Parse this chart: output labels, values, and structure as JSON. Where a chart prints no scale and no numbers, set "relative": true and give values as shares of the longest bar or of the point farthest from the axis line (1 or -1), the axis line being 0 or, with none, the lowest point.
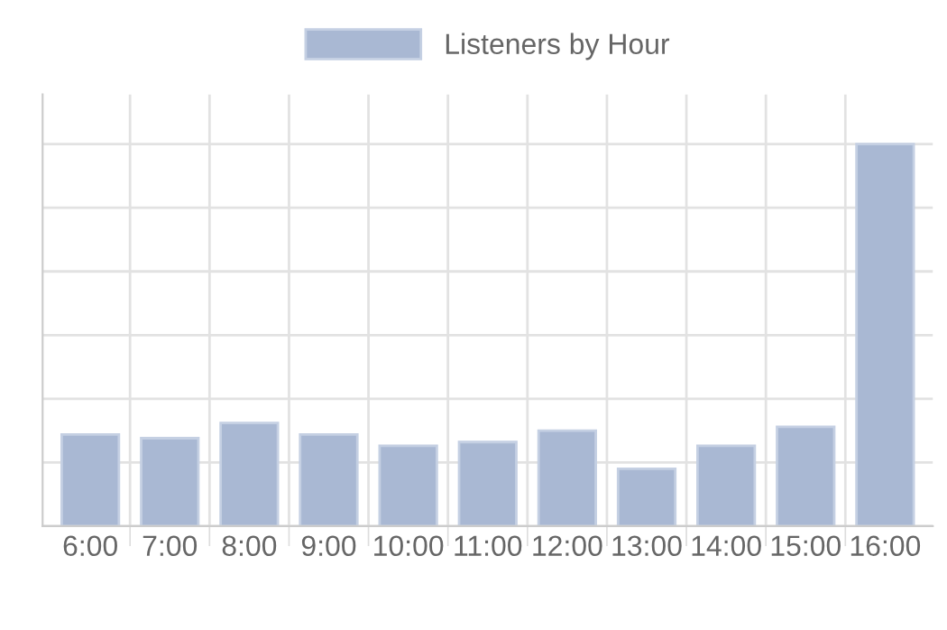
{
  "chart_data": {
    "type": "bar",
    "relative": true,
    "categories": [
      "6:00",
      "7:00",
      "8:00",
      "9:00",
      "10:00",
      "11:00",
      "12:00",
      "13:00",
      "14:00",
      "15:00",
      "16:00"
    ],
    "series": [
      {
        "name": "Listeners by Hour",
        "color": "#a9b8d3",
        "values": [
          0.24,
          0.23,
          0.27,
          0.24,
          0.21,
          0.22,
          0.25,
          0.15,
          0.21,
          0.26,
          1
        ]
      }
    ],
    "grid": true,
    "legend": "top"
  }
}
